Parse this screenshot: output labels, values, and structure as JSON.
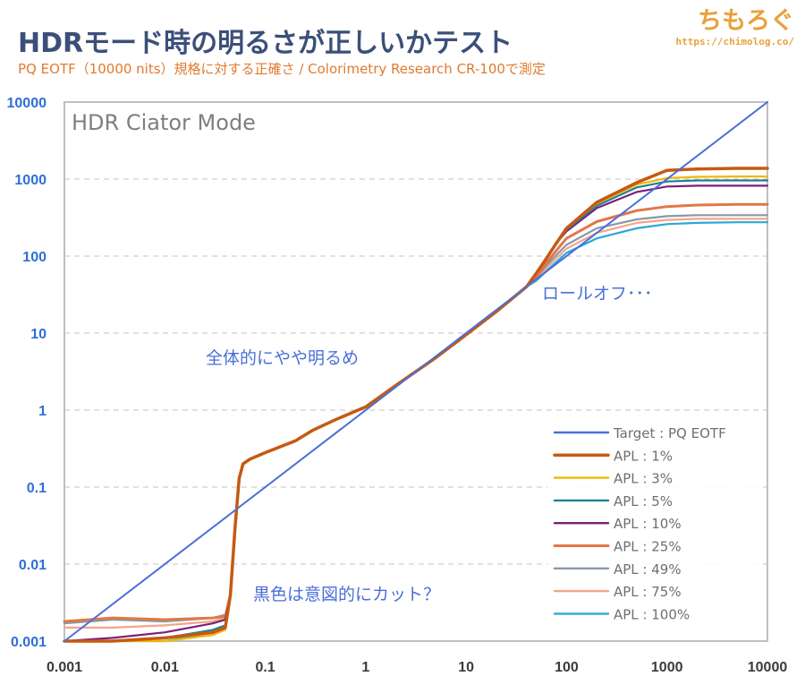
{
  "header": {
    "title": "HDRモード時の明るさが正しいかテスト",
    "subtitle": "PQ EOTF（10000 nits）規格に対する正確さ / Colorimetry Research CR-100で測定",
    "logo": "ちもろぐ",
    "url": "https://chimolog.co/"
  },
  "chart_data": {
    "type": "line",
    "mode_label": "HDR Ciator Mode",
    "x_scale": "log",
    "y_scale": "log",
    "xlim": [
      0.001,
      10000
    ],
    "ylim": [
      0.001,
      10000
    ],
    "x_ticks": [
      "0.001",
      "0.01",
      "0.1",
      "1",
      "10",
      "100",
      "1000",
      "10000"
    ],
    "y_ticks": [
      "10000",
      "1000",
      "100",
      "10",
      "1",
      "0.1",
      "0.01",
      "0.001"
    ],
    "grid": "horizontal-dashed",
    "legend_position": "bottom-right",
    "annotations": {
      "rolloff": "ロールオフ･･･",
      "bright": "全体的にやや明るめ",
      "black": "黒色は意図的にカット？"
    },
    "series": [
      {
        "name": "Target : PQ EOTF",
        "color": "#4a6fd8",
        "width": 2,
        "x": [
          0.001,
          10000
        ],
        "y": [
          0.001,
          10000
        ]
      },
      {
        "name": "APL : 1%",
        "color": "#c55a11",
        "width": 3.5,
        "x": [
          0.001,
          0.003,
          0.01,
          0.03,
          0.04,
          0.045,
          0.05,
          0.055,
          0.06,
          0.07,
          0.1,
          0.2,
          0.3,
          0.5,
          1,
          2,
          5,
          10,
          20,
          40,
          50,
          60,
          80,
          100,
          200,
          500,
          1000,
          2000,
          5000,
          10000
        ],
        "y": [
          0.001,
          0.001,
          0.0011,
          0.0013,
          0.0015,
          0.004,
          0.03,
          0.13,
          0.2,
          0.23,
          0.28,
          0.4,
          0.55,
          0.75,
          1.1,
          2.1,
          4.8,
          9.5,
          19,
          40,
          60,
          85,
          150,
          230,
          500,
          900,
          1300,
          1350,
          1380,
          1380
        ]
      },
      {
        "name": "APL : 3%",
        "color": "#f2b705",
        "width": 2.2,
        "x": [
          0.001,
          0.003,
          0.01,
          0.03,
          0.04,
          0.045,
          0.05,
          0.055,
          0.06,
          0.07,
          0.1,
          0.2,
          0.3,
          0.5,
          1,
          2,
          5,
          10,
          20,
          40,
          50,
          60,
          80,
          100,
          200,
          500,
          1000,
          2000,
          5000,
          10000
        ],
        "y": [
          0.001,
          0.001,
          0.001,
          0.0012,
          0.0014,
          0.004,
          0.03,
          0.13,
          0.2,
          0.23,
          0.28,
          0.4,
          0.55,
          0.75,
          1.1,
          2.1,
          4.8,
          9.5,
          19,
          40,
          60,
          85,
          150,
          230,
          480,
          850,
          1030,
          1070,
          1080,
          1080
        ]
      },
      {
        "name": "APL : 5%",
        "color": "#1f7f99",
        "width": 2.2,
        "x": [
          0.001,
          0.003,
          0.01,
          0.03,
          0.04,
          0.045,
          0.05,
          0.055,
          0.06,
          0.07,
          0.1,
          0.2,
          0.3,
          0.5,
          1,
          2,
          5,
          10,
          20,
          40,
          50,
          60,
          80,
          100,
          200,
          500,
          1000,
          2000,
          5000,
          10000
        ],
        "y": [
          0.001,
          0.001,
          0.0011,
          0.0014,
          0.0016,
          0.004,
          0.03,
          0.13,
          0.2,
          0.23,
          0.28,
          0.4,
          0.55,
          0.75,
          1.1,
          2.1,
          4.8,
          9.5,
          19,
          40,
          60,
          85,
          150,
          220,
          450,
          780,
          930,
          960,
          960,
          960
        ]
      },
      {
        "name": "APL : 10%",
        "color": "#7a1f7a",
        "width": 2.2,
        "x": [
          0.001,
          0.003,
          0.01,
          0.03,
          0.04,
          0.045,
          0.05,
          0.055,
          0.06,
          0.07,
          0.1,
          0.2,
          0.3,
          0.5,
          1,
          2,
          5,
          10,
          20,
          40,
          50,
          60,
          80,
          100,
          200,
          500,
          1000,
          2000,
          5000,
          10000
        ],
        "y": [
          0.001,
          0.0011,
          0.0013,
          0.0017,
          0.0019,
          0.004,
          0.03,
          0.13,
          0.2,
          0.23,
          0.28,
          0.4,
          0.55,
          0.75,
          1.1,
          2.1,
          4.8,
          9.5,
          19,
          40,
          60,
          85,
          150,
          210,
          420,
          680,
          800,
          820,
          820,
          820
        ]
      },
      {
        "name": "APL : 25%",
        "color": "#e07848",
        "width": 3,
        "x": [
          0.001,
          0.003,
          0.01,
          0.03,
          0.04,
          0.045,
          0.05,
          0.055,
          0.06,
          0.07,
          0.1,
          0.2,
          0.3,
          0.5,
          1,
          2,
          5,
          10,
          20,
          40,
          50,
          60,
          80,
          100,
          200,
          500,
          1000,
          2000,
          5000,
          10000
        ],
        "y": [
          0.0018,
          0.002,
          0.0019,
          0.002,
          0.0021,
          0.004,
          0.03,
          0.13,
          0.2,
          0.23,
          0.28,
          0.4,
          0.55,
          0.75,
          1.1,
          2.1,
          4.8,
          9.5,
          19,
          40,
          55,
          75,
          120,
          170,
          280,
          390,
          440,
          460,
          470,
          470
        ]
      },
      {
        "name": "APL : 49%",
        "color": "#8c97a6",
        "width": 2.2,
        "x": [
          0.001,
          0.003,
          0.01,
          0.03,
          0.04,
          0.045,
          0.05,
          0.055,
          0.06,
          0.07,
          0.1,
          0.2,
          0.3,
          0.5,
          1,
          2,
          5,
          10,
          20,
          40,
          50,
          60,
          80,
          100,
          200,
          500,
          1000,
          2000,
          5000,
          10000
        ],
        "y": [
          0.0017,
          0.0019,
          0.0018,
          0.002,
          0.0022,
          0.004,
          0.03,
          0.13,
          0.2,
          0.23,
          0.28,
          0.4,
          0.55,
          0.75,
          1.1,
          2.1,
          4.8,
          9.5,
          19,
          40,
          52,
          70,
          105,
          140,
          230,
          300,
          330,
          340,
          340,
          340
        ]
      },
      {
        "name": "APL : 75%",
        "color": "#f2a58a",
        "width": 2.2,
        "x": [
          0.001,
          0.003,
          0.01,
          0.03,
          0.04,
          0.045,
          0.05,
          0.055,
          0.06,
          0.07,
          0.1,
          0.2,
          0.3,
          0.5,
          1,
          2,
          5,
          10,
          20,
          40,
          50,
          60,
          80,
          100,
          200,
          500,
          1000,
          2000,
          5000,
          10000
        ],
        "y": [
          0.0015,
          0.0015,
          0.0016,
          0.0018,
          0.002,
          0.004,
          0.03,
          0.13,
          0.2,
          0.23,
          0.28,
          0.4,
          0.55,
          0.75,
          1.1,
          2.1,
          4.8,
          9.5,
          19,
          40,
          50,
          65,
          95,
          125,
          200,
          270,
          295,
          305,
          305,
          305
        ]
      },
      {
        "name": "APL : 100%",
        "color": "#29a8d6",
        "width": 2.2,
        "x": [
          0.001,
          0.003,
          0.01,
          0.03,
          0.04,
          0.045,
          0.05,
          0.055,
          0.06,
          0.07,
          0.1,
          0.2,
          0.3,
          0.5,
          1,
          2,
          5,
          10,
          20,
          40,
          50,
          60,
          80,
          100,
          200,
          500,
          1000,
          2000,
          5000,
          10000
        ],
        "y": [
          0.001,
          0.001,
          0.001,
          0.0013,
          0.0016,
          0.004,
          0.03,
          0.13,
          0.2,
          0.23,
          0.28,
          0.4,
          0.55,
          0.75,
          1.1,
          2.1,
          4.8,
          9.5,
          19,
          40,
          48,
          60,
          85,
          110,
          170,
          230,
          260,
          270,
          275,
          275
        ]
      }
    ]
  }
}
